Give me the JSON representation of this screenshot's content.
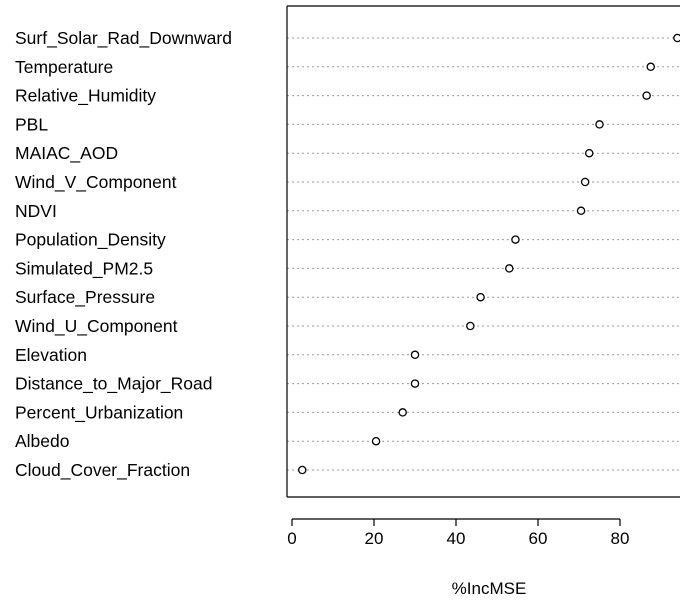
{
  "chart_data": {
    "type": "scatter",
    "style": "dotchart",
    "xlabel": "%IncMSE",
    "ylabel": "",
    "title": "",
    "xlim": [
      0,
      95
    ],
    "xticks": [
      0,
      20,
      40,
      60,
      80
    ],
    "grid": false,
    "guide_lines": "dotted horizontal per variable",
    "marker": "open circle",
    "categories": [
      "Surf_Solar_Rad_Downward",
      "Temperature",
      "Relative_Humidity",
      "PBL",
      "MAIAC_AOD",
      "Wind_V_Component",
      "NDVI",
      "Population_Density",
      "Simulated_PM2.5",
      "Surface_Pressure",
      "Wind_U_Component",
      "Elevation",
      "Distance_to_Major_Road",
      "Percent_Urbanization",
      "Albedo",
      "Cloud_Cover_Fraction"
    ],
    "values": [
      94,
      87.5,
      86.5,
      75,
      72.5,
      71.5,
      70.5,
      54.5,
      53,
      46,
      43.5,
      30,
      30,
      27,
      20.5,
      2.5
    ]
  },
  "colors": {
    "point_stroke": "#000000",
    "guide": "#9a9a9a",
    "frame": "#000000"
  }
}
